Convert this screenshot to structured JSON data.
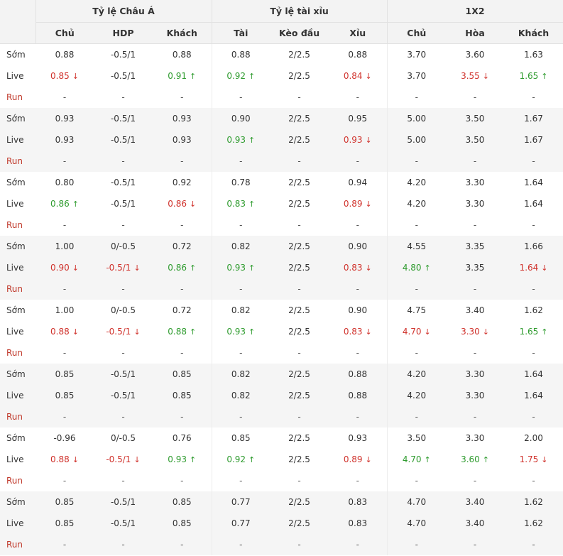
{
  "headers": {
    "groups": [
      "Tỷ lệ Châu Á",
      "Tỷ lệ tài xỉu",
      "1X2"
    ],
    "sub": [
      "Chủ",
      "HDP",
      "Khách",
      "Tài",
      "Kèo đầu",
      "Xỉu",
      "Chủ",
      "Hòa",
      "Khách"
    ]
  },
  "row_labels": {
    "early": "Sớm",
    "live": "Live",
    "run": "Run"
  },
  "dash": "-",
  "arrows": {
    "up": "↑",
    "down": "↓"
  },
  "colors": {
    "down": "#d0322c",
    "up": "#2e9b2e",
    "run_label": "#c0392b",
    "stripe": "#f5f5f5"
  },
  "blocks": [
    {
      "early": [
        "0.88",
        "-0.5/1",
        "0.88",
        "0.88",
        "2/2.5",
        "0.88",
        "3.70",
        "3.60",
        "1.63"
      ],
      "live": [
        [
          "0.85",
          "down"
        ],
        [
          "-0.5/1",
          ""
        ],
        [
          "0.91",
          "up"
        ],
        [
          "0.92",
          "up"
        ],
        [
          "2/2.5",
          ""
        ],
        [
          "0.84",
          "down"
        ],
        [
          "3.70",
          ""
        ],
        [
          "3.55",
          "down"
        ],
        [
          "1.65",
          "up"
        ]
      ]
    },
    {
      "early": [
        "0.93",
        "-0.5/1",
        "0.93",
        "0.90",
        "2/2.5",
        "0.95",
        "5.00",
        "3.50",
        "1.67"
      ],
      "live": [
        [
          "0.93",
          ""
        ],
        [
          "-0.5/1",
          ""
        ],
        [
          "0.93",
          ""
        ],
        [
          "0.93",
          "up"
        ],
        [
          "2/2.5",
          ""
        ],
        [
          "0.93",
          "down"
        ],
        [
          "5.00",
          ""
        ],
        [
          "3.50",
          ""
        ],
        [
          "1.67",
          ""
        ]
      ]
    },
    {
      "early": [
        "0.80",
        "-0.5/1",
        "0.92",
        "0.78",
        "2/2.5",
        "0.94",
        "4.20",
        "3.30",
        "1.64"
      ],
      "live": [
        [
          "0.86",
          "up"
        ],
        [
          "-0.5/1",
          ""
        ],
        [
          "0.86",
          "down"
        ],
        [
          "0.83",
          "up"
        ],
        [
          "2/2.5",
          ""
        ],
        [
          "0.89",
          "down"
        ],
        [
          "4.20",
          ""
        ],
        [
          "3.30",
          ""
        ],
        [
          "1.64",
          ""
        ]
      ]
    },
    {
      "early": [
        "1.00",
        "0/-0.5",
        "0.72",
        "0.82",
        "2/2.5",
        "0.90",
        "4.55",
        "3.35",
        "1.66"
      ],
      "live": [
        [
          "0.90",
          "down"
        ],
        [
          "-0.5/1",
          "down"
        ],
        [
          "0.86",
          "up"
        ],
        [
          "0.93",
          "up"
        ],
        [
          "2/2.5",
          ""
        ],
        [
          "0.83",
          "down"
        ],
        [
          "4.80",
          "up"
        ],
        [
          "3.35",
          ""
        ],
        [
          "1.64",
          "down"
        ]
      ]
    },
    {
      "early": [
        "1.00",
        "0/-0.5",
        "0.72",
        "0.82",
        "2/2.5",
        "0.90",
        "4.75",
        "3.40",
        "1.62"
      ],
      "live": [
        [
          "0.88",
          "down"
        ],
        [
          "-0.5/1",
          "down"
        ],
        [
          "0.88",
          "up"
        ],
        [
          "0.93",
          "up"
        ],
        [
          "2/2.5",
          ""
        ],
        [
          "0.83",
          "down"
        ],
        [
          "4.70",
          "down"
        ],
        [
          "3.30",
          "down"
        ],
        [
          "1.65",
          "up"
        ]
      ]
    },
    {
      "early": [
        "0.85",
        "-0.5/1",
        "0.85",
        "0.82",
        "2/2.5",
        "0.88",
        "4.20",
        "3.30",
        "1.64"
      ],
      "live": [
        [
          "0.85",
          ""
        ],
        [
          "-0.5/1",
          ""
        ],
        [
          "0.85",
          ""
        ],
        [
          "0.82",
          ""
        ],
        [
          "2/2.5",
          ""
        ],
        [
          "0.88",
          ""
        ],
        [
          "4.20",
          ""
        ],
        [
          "3.30",
          ""
        ],
        [
          "1.64",
          ""
        ]
      ]
    },
    {
      "early": [
        "-0.96",
        "0/-0.5",
        "0.76",
        "0.85",
        "2/2.5",
        "0.93",
        "3.50",
        "3.30",
        "2.00"
      ],
      "live": [
        [
          "0.88",
          "down"
        ],
        [
          "-0.5/1",
          "down"
        ],
        [
          "0.93",
          "up"
        ],
        [
          "0.92",
          "up"
        ],
        [
          "2/2.5",
          ""
        ],
        [
          "0.89",
          "down"
        ],
        [
          "4.70",
          "up"
        ],
        [
          "3.60",
          "up"
        ],
        [
          "1.75",
          "down"
        ]
      ]
    },
    {
      "early": [
        "0.85",
        "-0.5/1",
        "0.85",
        "0.77",
        "2/2.5",
        "0.83",
        "4.70",
        "3.40",
        "1.62"
      ],
      "live": [
        [
          "0.85",
          ""
        ],
        [
          "-0.5/1",
          ""
        ],
        [
          "0.85",
          ""
        ],
        [
          "0.77",
          ""
        ],
        [
          "2/2.5",
          ""
        ],
        [
          "0.83",
          ""
        ],
        [
          "4.70",
          ""
        ],
        [
          "3.40",
          ""
        ],
        [
          "1.62",
          ""
        ]
      ]
    }
  ]
}
